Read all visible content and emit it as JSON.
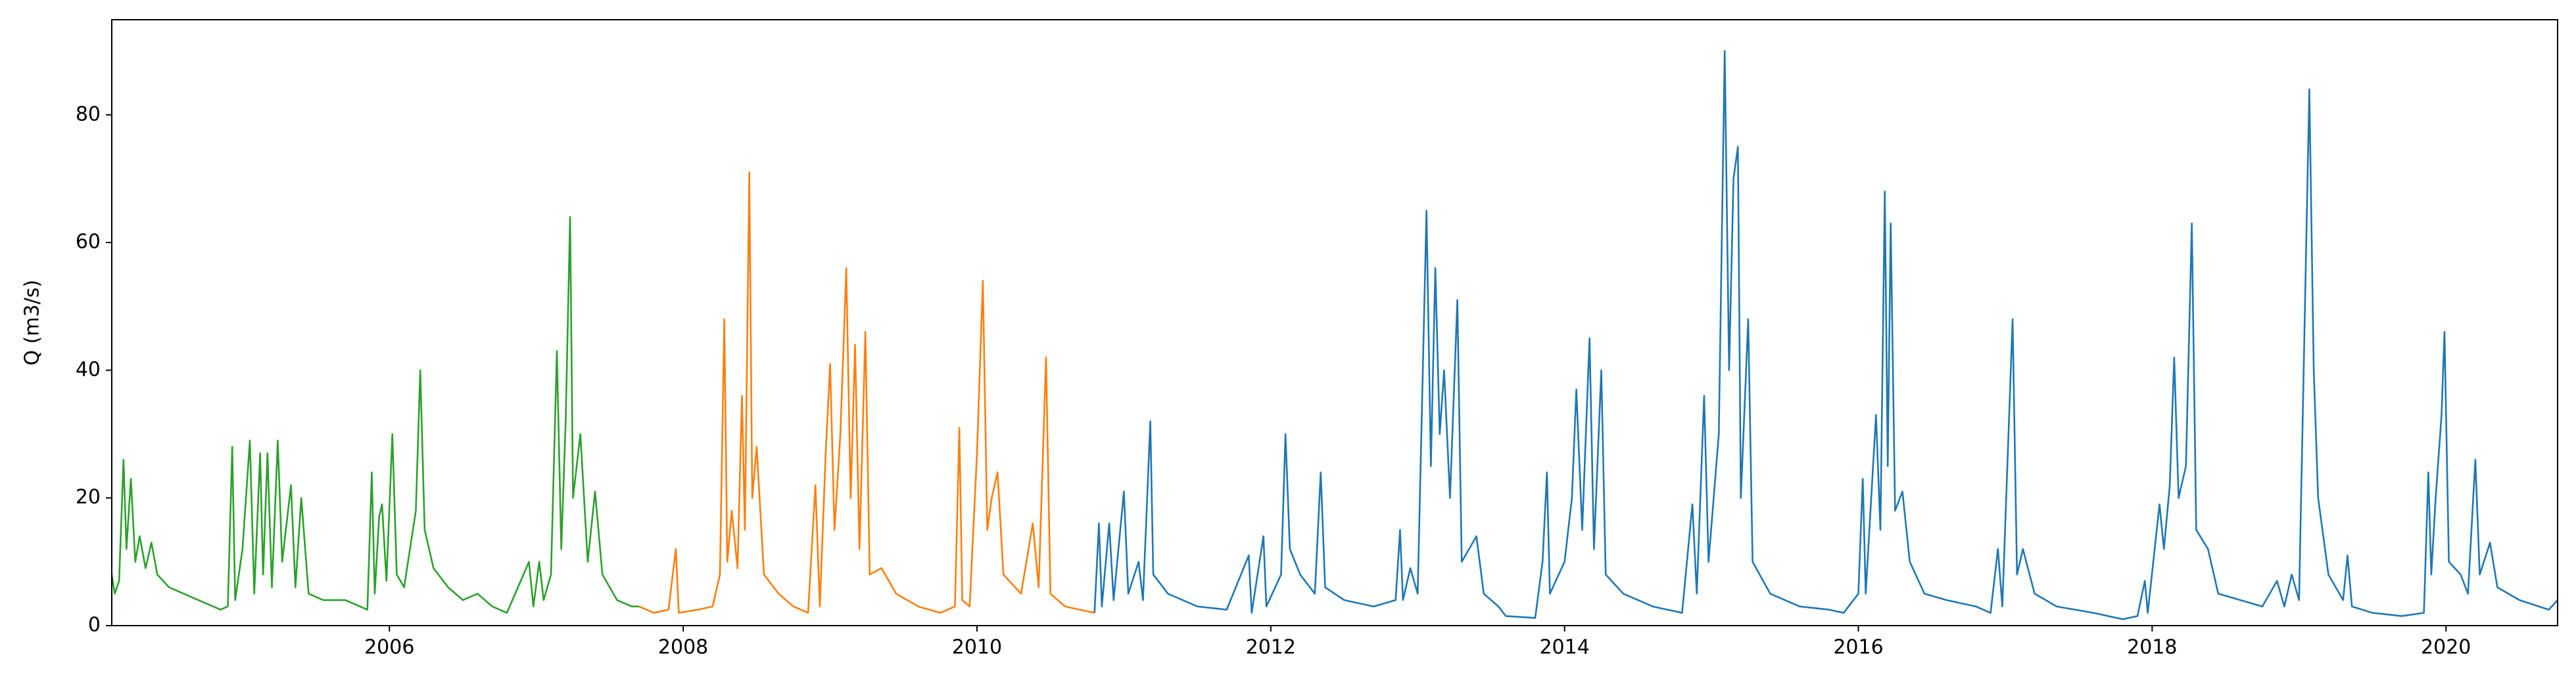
{
  "chart_data": {
    "type": "line",
    "ylabel": "Q (m3/s)",
    "xlim": [
      2004.11,
      2020.76
    ],
    "xticks": [
      2006,
      2008,
      2010,
      2012,
      2014,
      2016,
      2018,
      2020
    ],
    "ylim": [
      0,
      94.9
    ],
    "yticks": [
      0,
      20,
      40,
      60,
      80
    ],
    "grid": false,
    "series": [
      {
        "color": "#2ca02c",
        "x": [
          2004.11,
          2004.13,
          2004.16,
          2004.19,
          2004.21,
          2004.24,
          2004.27,
          2004.3,
          2004.34,
          2004.38,
          2004.42,
          2004.5,
          2004.6,
          2004.7,
          2004.8,
          2004.85,
          2004.9,
          2004.93,
          2004.95,
          2005.0,
          2005.05,
          2005.08,
          2005.12,
          2005.14,
          2005.17,
          2005.2,
          2005.24,
          2005.27,
          2005.33,
          2005.36,
          2005.4,
          2005.45,
          2005.55,
          2005.7,
          2005.8,
          2005.85,
          2005.88,
          2005.9,
          2005.93,
          2005.95,
          2005.98,
          2006.02,
          2006.05,
          2006.1,
          2006.18,
          2006.21,
          2006.24,
          2006.3,
          2006.4,
          2006.5,
          2006.6,
          2006.7,
          2006.8,
          2006.95,
          2006.98,
          2007.02,
          2007.05,
          2007.1,
          2007.14,
          2007.17,
          2007.2,
          2007.23,
          2007.25,
          2007.3,
          2007.35,
          2007.4,
          2007.45,
          2007.55,
          2007.65,
          2007.7
        ],
        "values": [
          8,
          5,
          7,
          26,
          12,
          23,
          10,
          14,
          9,
          13,
          8,
          6,
          5,
          4,
          3,
          2.5,
          3,
          28,
          4,
          12,
          29,
          5,
          27,
          8,
          27,
          6,
          29,
          10,
          22,
          6,
          20,
          5,
          4,
          4,
          3,
          2.5,
          24,
          5,
          17,
          19,
          7,
          30,
          8,
          6,
          18,
          40,
          15,
          9,
          6,
          4,
          5,
          3,
          2,
          10,
          3,
          10,
          4,
          8,
          43,
          12,
          32,
          64,
          20,
          30,
          10,
          21,
          8,
          4,
          3,
          3
        ]
      },
      {
        "color": "#ff7f0e",
        "x": [
          2007.7,
          2007.8,
          2007.9,
          2007.95,
          2007.97,
          2008.1,
          2008.2,
          2008.25,
          2008.28,
          2008.3,
          2008.33,
          2008.37,
          2008.4,
          2008.42,
          2008.45,
          2008.47,
          2008.5,
          2008.55,
          2008.65,
          2008.75,
          2008.85,
          2008.9,
          2008.93,
          2008.97,
          2009.0,
          2009.03,
          2009.07,
          2009.11,
          2009.14,
          2009.17,
          2009.2,
          2009.24,
          2009.27,
          2009.35,
          2009.45,
          2009.6,
          2009.75,
          2009.85,
          2009.88,
          2009.9,
          2009.95,
          2010.0,
          2010.04,
          2010.07,
          2010.1,
          2010.14,
          2010.18,
          2010.3,
          2010.38,
          2010.42,
          2010.47,
          2010.5,
          2010.6,
          2010.8
        ],
        "values": [
          3,
          2,
          2.5,
          12,
          2,
          2.5,
          3,
          8,
          48,
          10,
          18,
          9,
          36,
          15,
          71,
          20,
          28,
          8,
          5,
          3,
          2,
          22,
          3,
          27,
          41,
          15,
          30,
          56,
          20,
          44,
          12,
          46,
          8,
          9,
          5,
          3,
          2,
          3,
          31,
          4,
          3,
          27,
          54,
          15,
          20,
          24,
          8,
          5,
          16,
          6,
          42,
          5,
          3,
          2
        ]
      },
      {
        "color": "#1f77b4",
        "x": [
          2010.8,
          2010.83,
          2010.85,
          2010.9,
          2010.93,
          2011.0,
          2011.03,
          2011.1,
          2011.13,
          2011.18,
          2011.2,
          2011.3,
          2011.5,
          2011.7,
          2011.85,
          2011.87,
          2011.95,
          2011.97,
          2012.07,
          2012.1,
          2012.13,
          2012.2,
          2012.3,
          2012.34,
          2012.37,
          2012.5,
          2012.7,
          2012.85,
          2012.88,
          2012.9,
          2012.95,
          2013.0,
          2013.06,
          2013.09,
          2013.12,
          2013.15,
          2013.18,
          2013.22,
          2013.27,
          2013.3,
          2013.4,
          2013.45,
          2013.55,
          2013.6,
          2013.8,
          2013.85,
          2013.88,
          2013.9,
          2014.0,
          2014.05,
          2014.08,
          2014.12,
          2014.17,
          2014.2,
          2014.25,
          2014.28,
          2014.4,
          2014.6,
          2014.8,
          2014.87,
          2014.9,
          2014.95,
          2014.98,
          2015.05,
          2015.09,
          2015.12,
          2015.15,
          2015.18,
          2015.2,
          2015.25,
          2015.28,
          2015.4,
          2015.6,
          2015.8,
          2015.9,
          2016.0,
          2016.03,
          2016.05,
          2016.12,
          2016.15,
          2016.18,
          2016.2,
          2016.22,
          2016.25,
          2016.3,
          2016.35,
          2016.45,
          2016.6,
          2016.8,
          2016.9,
          2016.95,
          2016.98,
          2017.05,
          2017.08,
          2017.12,
          2017.2,
          2017.35,
          2017.6,
          2017.8,
          2017.9,
          2017.95,
          2017.97,
          2018.05,
          2018.08,
          2018.12,
          2018.15,
          2018.18,
          2018.23,
          2018.27,
          2018.3,
          2018.38,
          2018.45,
          2018.6,
          2018.75,
          2018.85,
          2018.9,
          2018.95,
          2019.0,
          2019.07,
          2019.1,
          2019.13,
          2019.2,
          2019.3,
          2019.33,
          2019.36,
          2019.5,
          2019.7,
          2019.85,
          2019.88,
          2019.9,
          2019.93,
          2019.97,
          2019.99,
          2020.02,
          2020.1,
          2020.15,
          2020.2,
          2020.23,
          2020.3,
          2020.35,
          2020.5,
          2020.7,
          2020.76
        ],
        "values": [
          2,
          16,
          3,
          16,
          4,
          21,
          5,
          10,
          4,
          32,
          8,
          5,
          3,
          2.5,
          11,
          2,
          14,
          3,
          8,
          30,
          12,
          8,
          5,
          24,
          6,
          4,
          3,
          4,
          15,
          4,
          9,
          5,
          65,
          25,
          56,
          30,
          40,
          20,
          51,
          10,
          14,
          5,
          3,
          1.5,
          1.2,
          10,
          24,
          5,
          10,
          20,
          37,
          15,
          45,
          12,
          40,
          8,
          5,
          3,
          2,
          19,
          5,
          36,
          10,
          30,
          90,
          40,
          70,
          75,
          20,
          48,
          10,
          5,
          3,
          2.5,
          2,
          5,
          23,
          5,
          33,
          15,
          68,
          25,
          63,
          18,
          21,
          10,
          5,
          4,
          3,
          2,
          12,
          3,
          48,
          8,
          12,
          5,
          3,
          2,
          1,
          1.5,
          7,
          2,
          19,
          12,
          22,
          42,
          20,
          25,
          63,
          15,
          12,
          5,
          4,
          3,
          7,
          3,
          8,
          4,
          84,
          40,
          20,
          8,
          4,
          11,
          3,
          2,
          1.5,
          2,
          24,
          8,
          20,
          33,
          46,
          10,
          8,
          5,
          26,
          8,
          13,
          6,
          4,
          2.5,
          4
        ]
      }
    ]
  }
}
